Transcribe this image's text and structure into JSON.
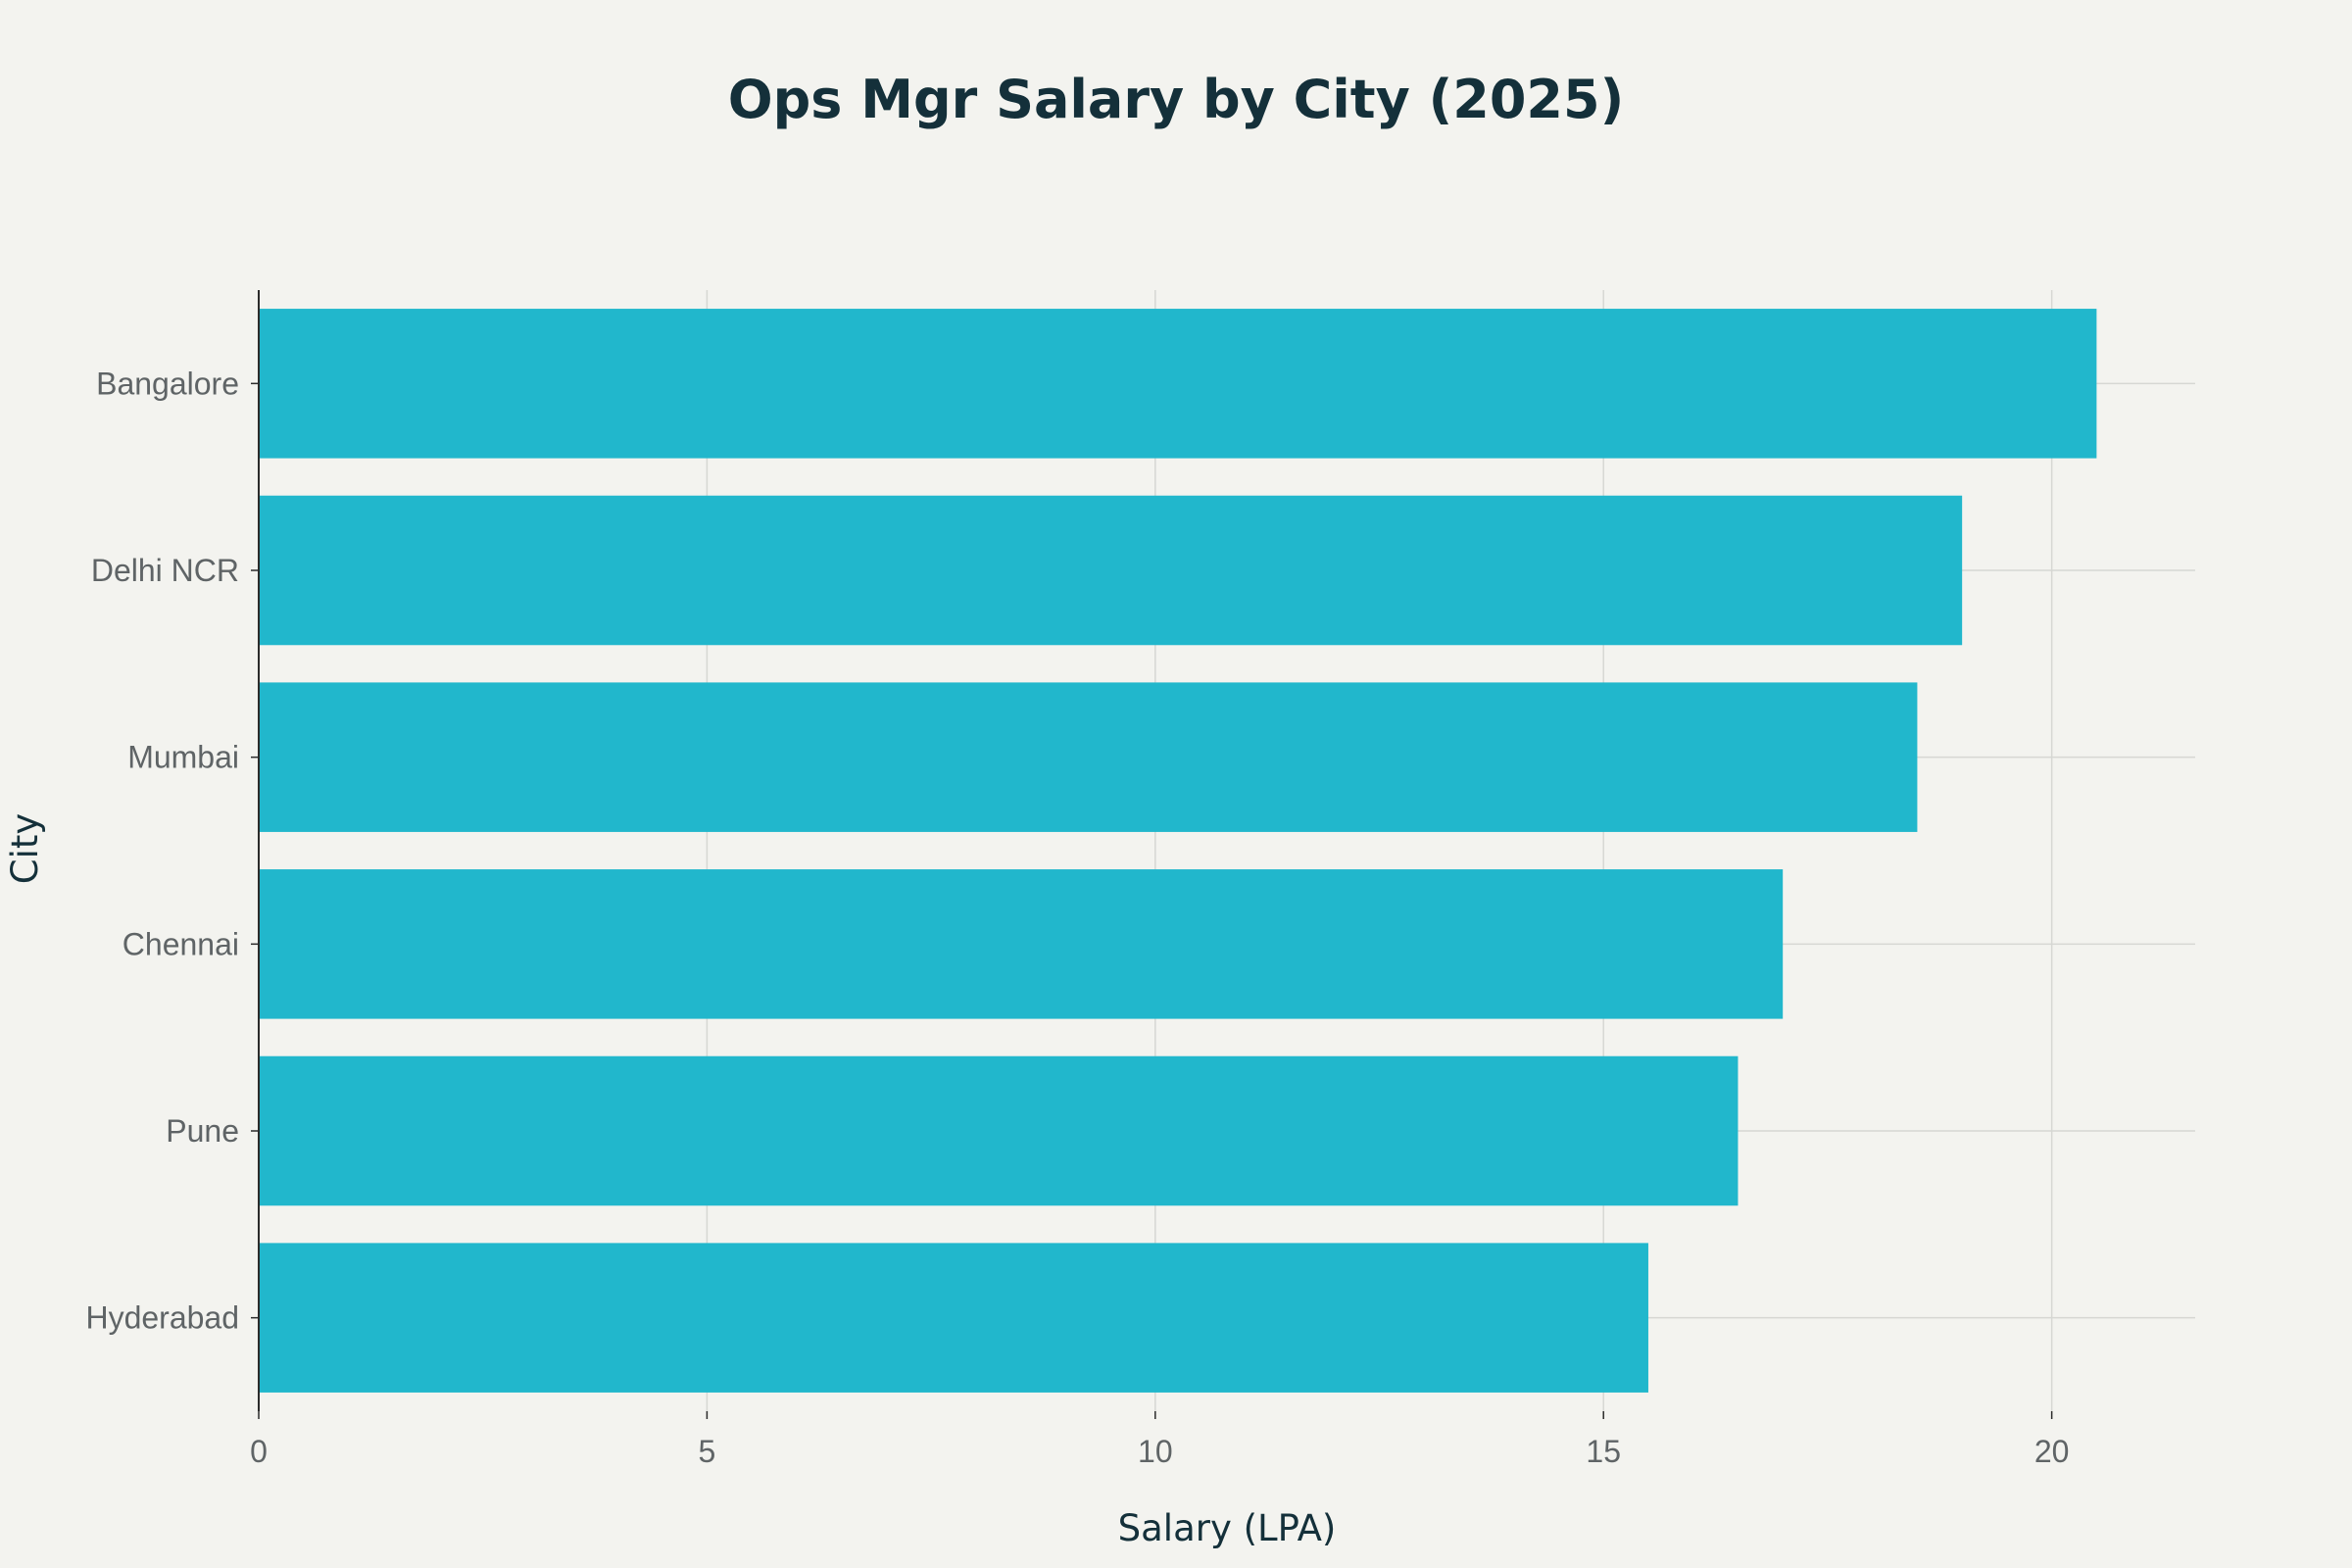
{
  "chart_data": {
    "type": "bar",
    "orientation": "horizontal",
    "title": "Ops Mgr Salary by City (2025)",
    "xlabel": "Salary (LPA)",
    "ylabel": "City",
    "categories": [
      "Bangalore",
      "Delhi NCR",
      "Mumbai",
      "Chennai",
      "Pune",
      "Hyderabad"
    ],
    "values": [
      20.5,
      19.0,
      18.5,
      17.0,
      16.5,
      15.5
    ],
    "xlim": [
      0,
      21.6
    ],
    "xticks": [
      0,
      5,
      10,
      15,
      20
    ],
    "grid": true,
    "legend": "none",
    "colors": {
      "bar": "#21b7cc",
      "background": "#f3f3ef",
      "grid": "#d6d7d3",
      "axis": "#2b2b2b",
      "title": "#14303a",
      "tick": "#5f6466"
    }
  }
}
